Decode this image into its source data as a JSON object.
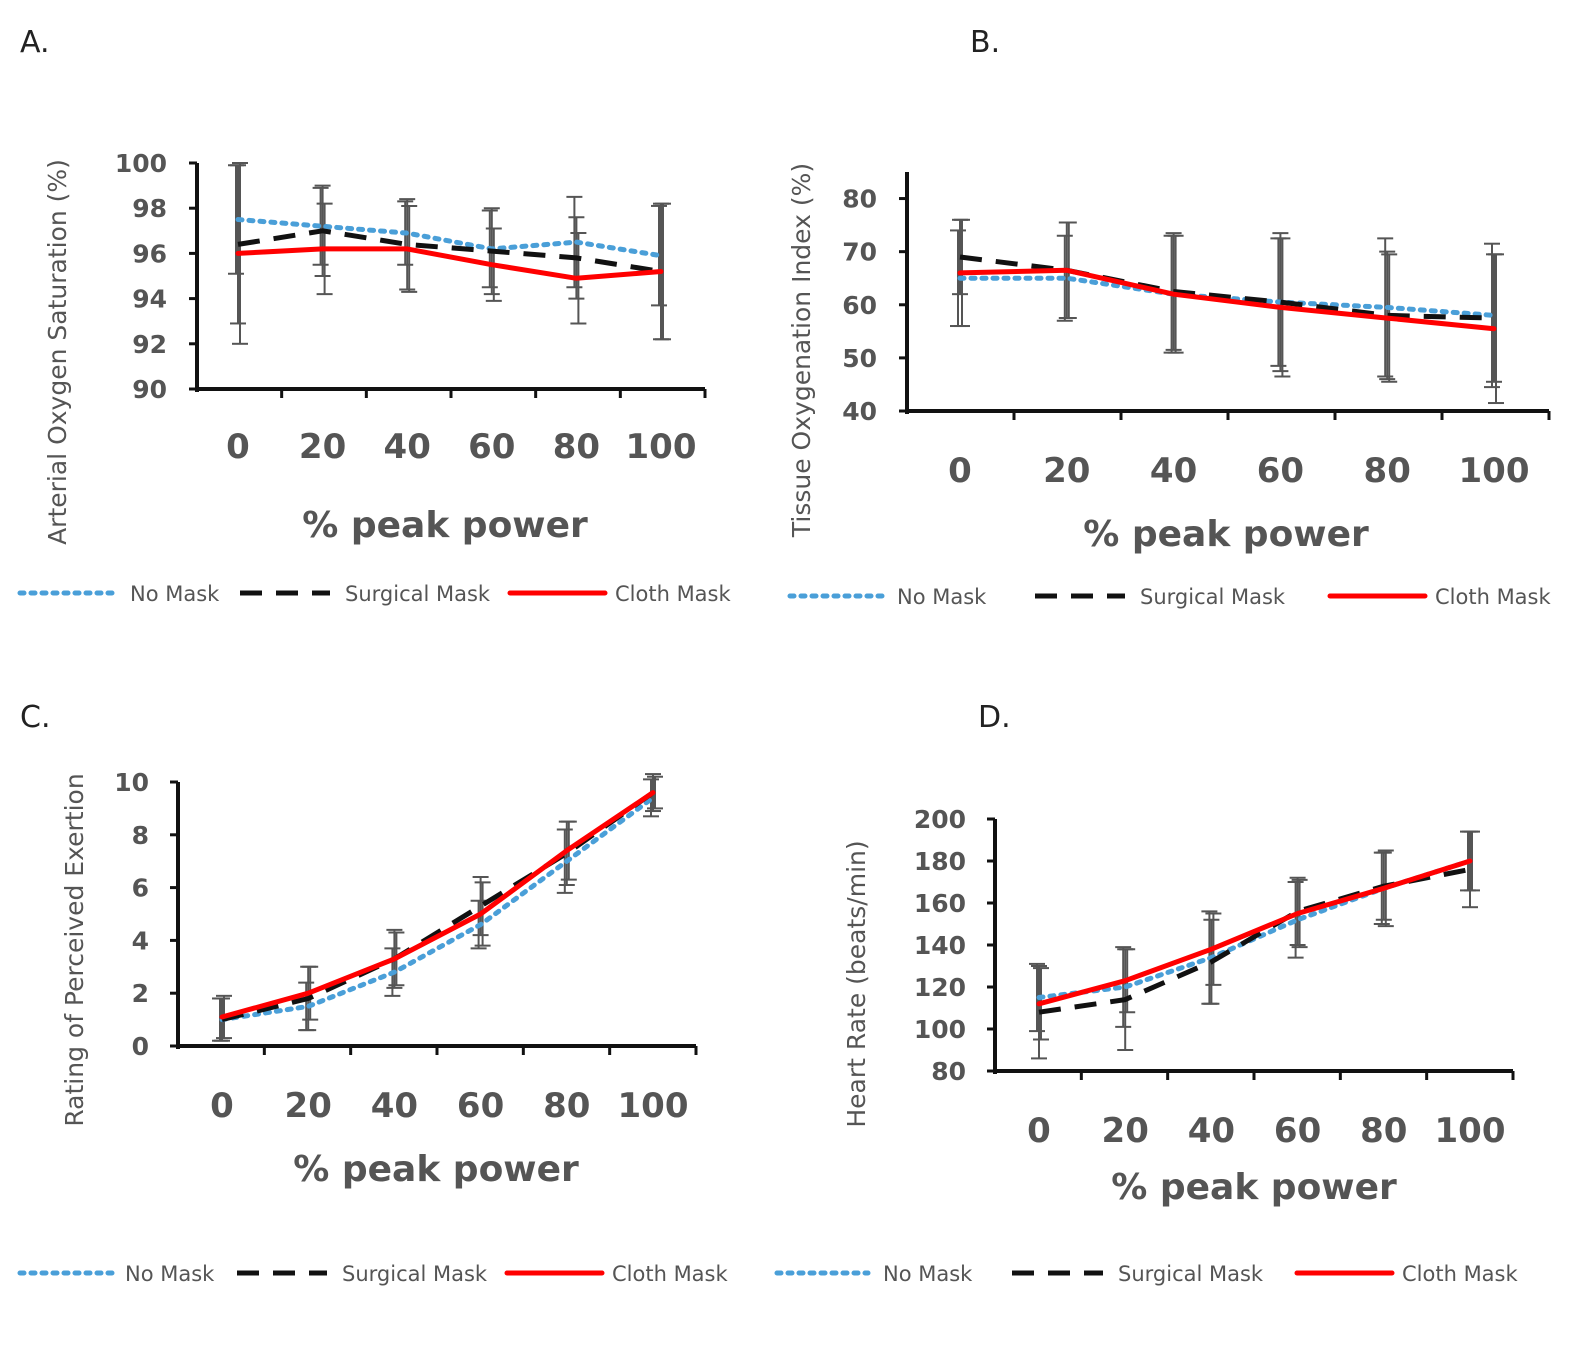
{
  "colors": {
    "no_mask": "#4a9fd8",
    "surgical_mask": "#111111",
    "cloth_mask": "#ff0000",
    "axis": "#111111",
    "error_bar": "#555555"
  },
  "legend": [
    "No Mask",
    "Surgical Mask",
    "Cloth Mask"
  ],
  "chart_data": [
    {
      "panel": "A.",
      "type": "line",
      "xlabel": "% peak power",
      "ylabel": "Arterial Oxygen Saturation (%)",
      "x": [
        0,
        20,
        40,
        60,
        80,
        100
      ],
      "x_ticks": [
        "0",
        "20",
        "40",
        "60",
        "80",
        "100"
      ],
      "y_ticks": [
        "90",
        "92",
        "94",
        "96",
        "98",
        "100"
      ],
      "ylim": [
        90,
        100
      ],
      "series": [
        {
          "name": "No Mask",
          "values": [
            97.5,
            97.2,
            96.9,
            96.2,
            96.5,
            95.9
          ],
          "err": [
            2.4,
            1.7,
            1.4,
            1.7,
            2.0,
            2.2
          ]
        },
        {
          "name": "Surgical Mask",
          "values": [
            96.4,
            97.0,
            96.4,
            96.1,
            95.8,
            95.2
          ],
          "err": [
            3.5,
            2.0,
            2.0,
            1.9,
            1.8,
            3.0
          ]
        },
        {
          "name": "Cloth Mask",
          "values": [
            96.0,
            96.2,
            96.2,
            95.5,
            94.9,
            95.2
          ],
          "err": [
            4.0,
            2.0,
            1.9,
            1.6,
            2.0,
            3.0
          ]
        }
      ]
    },
    {
      "panel": "B.",
      "type": "line",
      "xlabel": "% peak power",
      "ylabel": "Tissue Oxygenation Index  (%)",
      "x": [
        0,
        20,
        40,
        60,
        80,
        100
      ],
      "x_ticks": [
        "0",
        "20",
        "40",
        "60",
        "80",
        "100"
      ],
      "y_ticks": [
        "40",
        "50",
        "60",
        "70",
        "80"
      ],
      "ylim": [
        40,
        85
      ],
      "series": [
        {
          "name": "No Mask",
          "values": [
            65,
            65,
            62,
            60.5,
            59.5,
            58
          ],
          "err": [
            9,
            8,
            11,
            12,
            13,
            13.5
          ]
        },
        {
          "name": "Surgical Mask",
          "values": [
            69,
            66.5,
            62.5,
            60.5,
            58,
            57.5
          ],
          "err": [
            7,
            9,
            11,
            13,
            12,
            12
          ]
        },
        {
          "name": "Cloth Mask",
          "values": [
            66,
            66.5,
            62,
            59.5,
            57.5,
            55.5
          ],
          "err": [
            10,
            9,
            11,
            13,
            12,
            14
          ]
        }
      ]
    },
    {
      "panel": "C.",
      "type": "line",
      "xlabel": "% peak power",
      "ylabel": "Rating of Perceived Exertion",
      "x": [
        0,
        20,
        40,
        60,
        80,
        100
      ],
      "x_ticks": [
        "0",
        "20",
        "40",
        "60",
        "80",
        "100"
      ],
      "y_ticks": [
        "0",
        "2",
        "4",
        "6",
        "8",
        "10"
      ],
      "ylim": [
        0,
        10
      ],
      "series": [
        {
          "name": "No Mask",
          "values": [
            1.0,
            1.5,
            2.8,
            4.6,
            7.0,
            9.4
          ],
          "err": [
            0.8,
            0.9,
            0.9,
            0.9,
            1.2,
            0.7
          ]
        },
        {
          "name": "Surgical Mask",
          "values": [
            1.0,
            1.8,
            3.3,
            5.3,
            7.3,
            9.6
          ],
          "err": [
            0.8,
            1.2,
            1.1,
            1.1,
            1.2,
            0.7
          ]
        },
        {
          "name": "Cloth Mask",
          "values": [
            1.1,
            2.0,
            3.3,
            5.0,
            7.4,
            9.6
          ],
          "err": [
            0.8,
            1.0,
            1.0,
            1.2,
            1.1,
            0.6
          ]
        }
      ]
    },
    {
      "panel": "D.",
      "type": "line",
      "xlabel": "% peak power",
      "ylabel": "Heart Rate (beats/min)",
      "x": [
        0,
        20,
        40,
        60,
        80,
        100
      ],
      "x_ticks": [
        "0",
        "20",
        "40",
        "60",
        "80",
        "100"
      ],
      "y_ticks": [
        "80",
        "100",
        "120",
        "140",
        "160",
        "180",
        "200"
      ],
      "ylim": [
        80,
        200
      ],
      "series": [
        {
          "name": "No Mask",
          "values": [
            115,
            120,
            134,
            152,
            167,
            180
          ],
          "err": [
            16,
            19,
            22,
            18,
            17,
            14
          ]
        },
        {
          "name": "Surgical Mask",
          "values": [
            108,
            114,
            132,
            156,
            168,
            176
          ],
          "err": [
            22,
            24,
            20,
            16,
            16,
            18
          ]
        },
        {
          "name": "Cloth Mask",
          "values": [
            112,
            123,
            138,
            155,
            167,
            180
          ],
          "err": [
            17,
            15,
            17,
            16,
            18,
            14
          ]
        }
      ]
    }
  ]
}
